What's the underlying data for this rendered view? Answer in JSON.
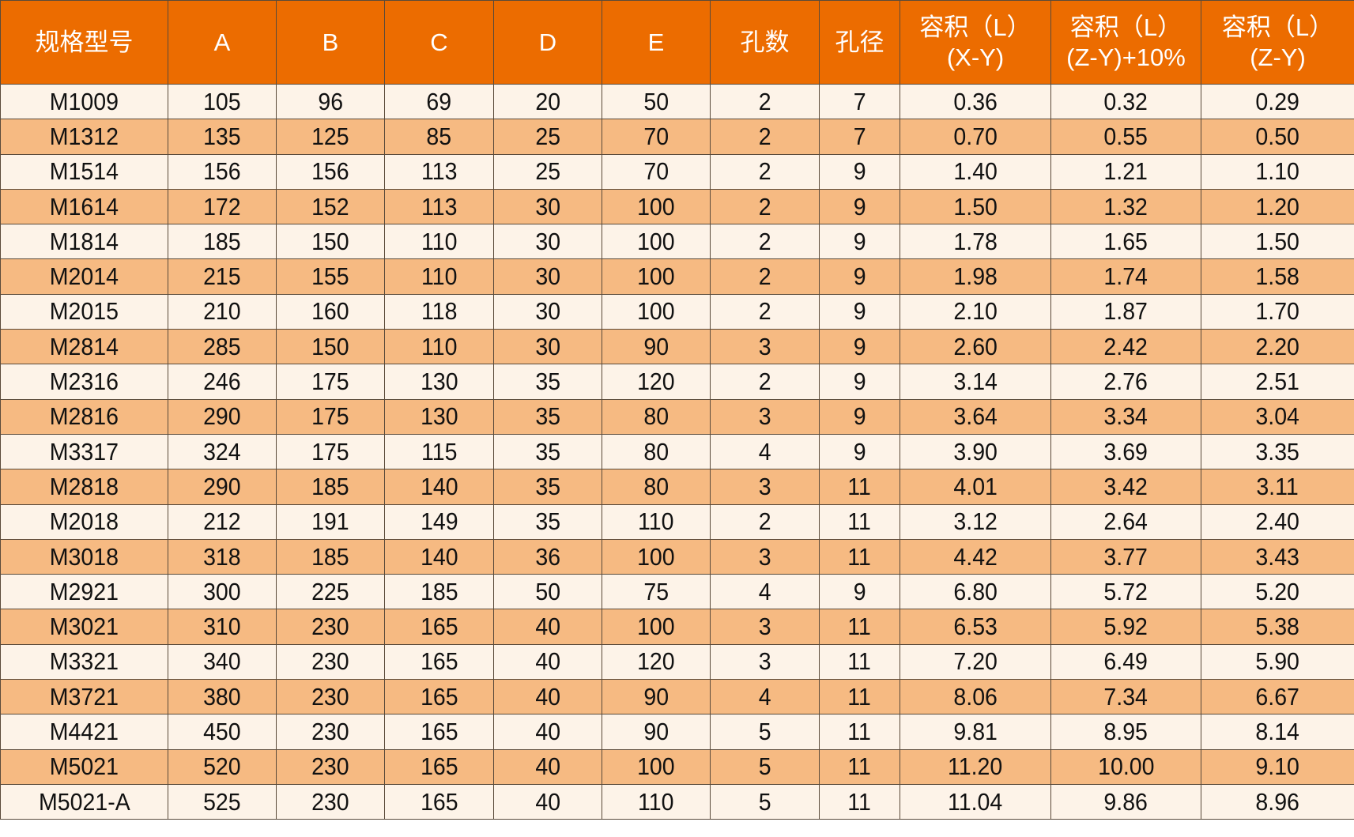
{
  "colors": {
    "header": "#EC6C00",
    "row_light": "#FDF3E8",
    "row_dark": "#F6BA82"
  },
  "headers": [
    "规格型号",
    "A",
    "B",
    "C",
    "D",
    "E",
    "孔数",
    "孔径",
    "容积（L）\n(X-Y)",
    "容积（L）\n(Z-Y)+10%",
    "容积（L）\n(Z-Y)"
  ],
  "rows": [
    [
      "M1009",
      "105",
      "96",
      "69",
      "20",
      "50",
      "2",
      "7",
      "0.36",
      "0.32",
      "0.29"
    ],
    [
      "M1312",
      "135",
      "125",
      "85",
      "25",
      "70",
      "2",
      "7",
      "0.70",
      "0.55",
      "0.50"
    ],
    [
      "M1514",
      "156",
      "156",
      "113",
      "25",
      "70",
      "2",
      "9",
      "1.40",
      "1.21",
      "1.10"
    ],
    [
      "M1614",
      "172",
      "152",
      "113",
      "30",
      "100",
      "2",
      "9",
      "1.50",
      "1.32",
      "1.20"
    ],
    [
      "M1814",
      "185",
      "150",
      "110",
      "30",
      "100",
      "2",
      "9",
      "1.78",
      "1.65",
      "1.50"
    ],
    [
      "M2014",
      "215",
      "155",
      "110",
      "30",
      "100",
      "2",
      "9",
      "1.98",
      "1.74",
      "1.58"
    ],
    [
      "M2015",
      "210",
      "160",
      "118",
      "30",
      "100",
      "2",
      "9",
      "2.10",
      "1.87",
      "1.70"
    ],
    [
      "M2814",
      "285",
      "150",
      "110",
      "30",
      "90",
      "3",
      "9",
      "2.60",
      "2.42",
      "2.20"
    ],
    [
      "M2316",
      "246",
      "175",
      "130",
      "35",
      "120",
      "2",
      "9",
      "3.14",
      "2.76",
      "2.51"
    ],
    [
      "M2816",
      "290",
      "175",
      "130",
      "35",
      "80",
      "3",
      "9",
      "3.64",
      "3.34",
      "3.04"
    ],
    [
      "M3317",
      "324",
      "175",
      "115",
      "35",
      "80",
      "4",
      "9",
      "3.90",
      "3.69",
      "3.35"
    ],
    [
      "M2818",
      "290",
      "185",
      "140",
      "35",
      "80",
      "3",
      "11",
      "4.01",
      "3.42",
      "3.11"
    ],
    [
      "M2018",
      "212",
      "191",
      "149",
      "35",
      "110",
      "2",
      "11",
      "3.12",
      "2.64",
      "2.40"
    ],
    [
      "M3018",
      "318",
      "185",
      "140",
      "36",
      "100",
      "3",
      "11",
      "4.42",
      "3.77",
      "3.43"
    ],
    [
      "M2921",
      "300",
      "225",
      "185",
      "50",
      "75",
      "4",
      "9",
      "6.80",
      "5.72",
      "5.20"
    ],
    [
      "M3021",
      "310",
      "230",
      "165",
      "40",
      "100",
      "3",
      "11",
      "6.53",
      "5.92",
      "5.38"
    ],
    [
      "M3321",
      "340",
      "230",
      "165",
      "40",
      "120",
      "3",
      "11",
      "7.20",
      "6.49",
      "5.90"
    ],
    [
      "M3721",
      "380",
      "230",
      "165",
      "40",
      "90",
      "4",
      "11",
      "8.06",
      "7.34",
      "6.67"
    ],
    [
      "M4421",
      "450",
      "230",
      "165",
      "40",
      "90",
      "5",
      "11",
      "9.81",
      "8.95",
      "8.14"
    ],
    [
      "M5021",
      "520",
      "230",
      "165",
      "40",
      "100",
      "5",
      "11",
      "11.20",
      "10.00",
      "9.10"
    ],
    [
      "M5021-A",
      "525",
      "230",
      "165",
      "40",
      "110",
      "5",
      "11",
      "11.04",
      "9.86",
      "8.96"
    ]
  ]
}
